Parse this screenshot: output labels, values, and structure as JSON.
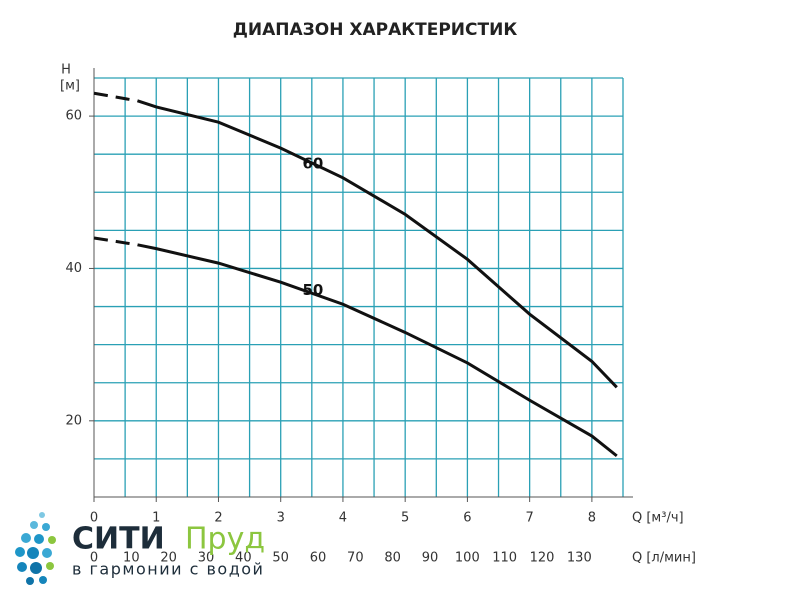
{
  "chart_data": {
    "type": "line",
    "title": "ДИАПАЗОН ХАРАКТЕРИСТИК",
    "y_label": [
      "H",
      "[м]"
    ],
    "x_label": "Q [м³/ч]",
    "x2_label": "Q [л/мин]",
    "x": [
      0,
      0.7,
      1,
      2,
      3,
      4,
      5,
      6,
      7,
      8,
      8.4
    ],
    "series": [
      {
        "name": "60",
        "color": "#111111",
        "dashed_segments": 1,
        "values": [
          63,
          62,
          61.2,
          59.2,
          55.8,
          51.9,
          47.1,
          41.2,
          34,
          27.8,
          24.4
        ]
      },
      {
        "name": "50",
        "color": "#111111",
        "dashed_segments": 1,
        "values": [
          44,
          43.1,
          42.6,
          40.7,
          38.2,
          35.3,
          31.6,
          27.6,
          22.7,
          18,
          15.4
        ]
      }
    ],
    "xlim": [
      0,
      8.5
    ],
    "xticks": [
      0,
      1,
      2,
      3,
      4,
      5,
      6,
      7,
      8
    ],
    "x_gridlines": [
      0.5,
      1,
      1.5,
      2,
      2.5,
      3,
      3.5,
      4,
      4.5,
      5,
      5.5,
      6,
      6.5,
      7,
      7.5,
      8,
      8.5
    ],
    "x2lim": [
      0,
      141.7
    ],
    "x2ticks": [
      0,
      10,
      20,
      30,
      40,
      50,
      60,
      70,
      80,
      90,
      100,
      110,
      120,
      130
    ],
    "ylim": [
      10,
      65
    ],
    "yticks": [
      20,
      40,
      60
    ],
    "y_gridlines": [
      15,
      20,
      25,
      30,
      35,
      40,
      45,
      50,
      55,
      60,
      65
    ],
    "grid_color": "#2aa0b5"
  },
  "logo": {
    "name": "СИТИ",
    "name2": "Пруд",
    "slogan": "в гармонии с водой"
  }
}
